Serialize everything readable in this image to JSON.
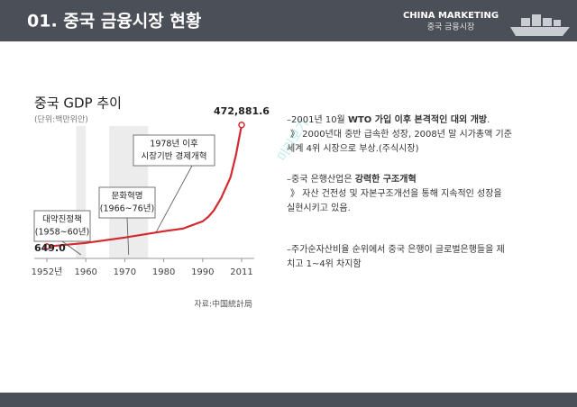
{
  "header": {
    "title": "01. 중국 금융시장 현황",
    "brand": "CHINA MARKETING",
    "subtitle": "중국 금융시장"
  },
  "chart_data": {
    "type": "line",
    "title": "중국 GDP 추이",
    "subtitle": "(단위:백만위안)",
    "source": "자료:中国統計局",
    "x": [
      1952,
      1960,
      1970,
      1980,
      1985,
      1990,
      1993,
      1996,
      2000,
      2005,
      2008,
      2011
    ],
    "values": [
      649.0,
      14600,
      35600,
      60100,
      70600,
      98600,
      116000,
      140600,
      189500,
      270000,
      357500,
      472881.6
    ],
    "value_labels": [
      "649.0",
      null,
      null,
      null,
      null,
      null,
      null,
      null,
      null,
      null,
      null,
      "472,881.6"
    ],
    "color": "#d42a2f",
    "xlim": [
      1952,
      2011
    ],
    "xticks": [
      {
        "value": 1952,
        "label": "1952년"
      },
      1960,
      1970,
      1980,
      1990,
      2011
    ],
    "ylim": [
      0,
      500000
    ],
    "annotations": [
      {
        "lines": [
          "대약진정책",
          "(1958~60년)"
        ],
        "from": 1958,
        "to": 1960
      },
      {
        "lines": [
          "문화혁명",
          "(1966~76년)"
        ],
        "from": 1966,
        "to": 1976
      },
      {
        "lines": [
          "1978년 이후",
          "시장기반 경제개혁"
        ],
        "at": 1978
      }
    ]
  },
  "watermark": "미리보기",
  "bullets": [
    {
      "lines": [
        [
          {
            "text": "–2001년 10월 "
          },
          {
            "text": "WTO 가입 이후 본격적인 대외 개방",
            "bold": true
          },
          {
            "text": "."
          }
        ],
        [
          {
            "text": "》 2000년대 중반 급속한 성장, 2008년 말 시가총액 기준"
          }
        ],
        [
          {
            "text": "세계 4위 시장으로 부상.(주식시장)"
          }
        ]
      ]
    },
    {
      "lines": [
        [
          {
            "text": "–중국 은행산업은 "
          },
          {
            "text": "강력한 구조개혁",
            "bold": true
          }
        ],
        [
          {
            "text": "》 자산 건전성 및 자본구조개선을 통해 지속적인 성장을"
          }
        ],
        [
          {
            "text": "실현시키고 있음."
          }
        ]
      ]
    },
    {
      "lines": [
        [
          {
            "text": "–주가순자산비율 순위에서 중국 은행이 글로벌은행들을 제"
          }
        ],
        [
          {
            "text": "치고 1~4위 차지함"
          }
        ]
      ]
    }
  ]
}
